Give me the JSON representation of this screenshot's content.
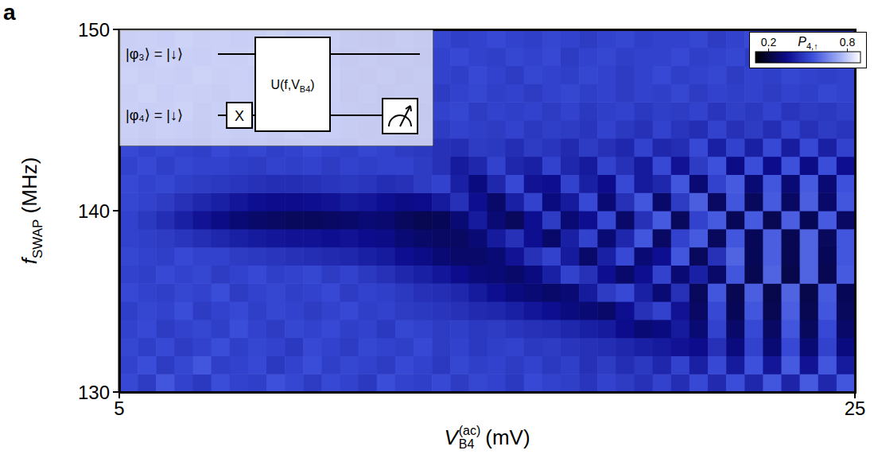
{
  "chart_data": {
    "type": "heatmap",
    "panel_label": "a",
    "x_label": {
      "symbol": "V",
      "sub": "B4",
      "sup": "(ac)",
      "unit": "(mV)"
    },
    "y_label": {
      "symbol": "f",
      "sub": "SWAP",
      "unit": "(MHz)"
    },
    "xlim": [
      5,
      25
    ],
    "xticks": [
      5,
      25
    ],
    "ylim": [
      130,
      150
    ],
    "yticks": [
      130,
      140,
      150
    ],
    "x": [
      5.25,
      5.75,
      6.25,
      6.75,
      7.25,
      7.75,
      8.25,
      8.75,
      9.25,
      9.75,
      10.25,
      10.75,
      11.25,
      11.75,
      12.25,
      12.75,
      13.25,
      13.75,
      14.25,
      14.75,
      15.25,
      15.75,
      16.25,
      16.75,
      17.25,
      17.75,
      18.25,
      18.75,
      19.25,
      19.75,
      20.25,
      20.75,
      21.25,
      21.75,
      22.25,
      22.75,
      23.25,
      23.75,
      24.25,
      24.75
    ],
    "y": [
      130.5,
      131.5,
      132.5,
      133.5,
      134.5,
      135.5,
      136.5,
      137.5,
      138.5,
      139.5,
      140.5,
      141.5,
      142.5,
      143.5,
      144.5,
      145.5,
      146.5,
      147.5,
      148.5,
      149.5
    ],
    "values": [
      [
        0.52,
        0.48,
        0.55,
        0.5,
        0.47,
        0.53,
        0.5,
        0.49,
        0.54,
        0.51,
        0.48,
        0.52,
        0.5,
        0.47,
        0.53,
        0.5,
        0.49,
        0.52,
        0.48,
        0.51,
        0.5,
        0.47,
        0.52,
        0.5,
        0.49,
        0.46,
        0.5,
        0.48,
        0.45,
        0.5,
        0.44,
        0.52,
        0.43,
        0.53,
        0.42,
        0.55,
        0.41,
        0.56,
        0.42,
        0.55
      ],
      [
        0.5,
        0.53,
        0.48,
        0.51,
        0.55,
        0.49,
        0.5,
        0.52,
        0.47,
        0.5,
        0.53,
        0.49,
        0.51,
        0.5,
        0.48,
        0.52,
        0.5,
        0.47,
        0.51,
        0.49,
        0.5,
        0.48,
        0.5,
        0.47,
        0.49,
        0.45,
        0.48,
        0.44,
        0.47,
        0.42,
        0.5,
        0.4,
        0.52,
        0.38,
        0.54,
        0.37,
        0.56,
        0.36,
        0.55,
        0.38
      ],
      [
        0.51,
        0.49,
        0.52,
        0.48,
        0.5,
        0.53,
        0.49,
        0.51,
        0.5,
        0.47,
        0.52,
        0.5,
        0.48,
        0.51,
        0.5,
        0.49,
        0.52,
        0.48,
        0.5,
        0.47,
        0.49,
        0.5,
        0.47,
        0.48,
        0.46,
        0.45,
        0.44,
        0.42,
        0.4,
        0.38,
        0.36,
        0.34,
        0.45,
        0.32,
        0.5,
        0.3,
        0.52,
        0.3,
        0.5,
        0.32
      ],
      [
        0.5,
        0.52,
        0.48,
        0.5,
        0.51,
        0.49,
        0.53,
        0.5,
        0.48,
        0.51,
        0.5,
        0.52,
        0.49,
        0.5,
        0.47,
        0.51,
        0.5,
        0.48,
        0.49,
        0.47,
        0.48,
        0.46,
        0.45,
        0.44,
        0.42,
        0.4,
        0.38,
        0.34,
        0.3,
        0.32,
        0.38,
        0.3,
        0.5,
        0.28,
        0.52,
        0.27,
        0.55,
        0.26,
        0.52,
        0.28
      ],
      [
        0.49,
        0.51,
        0.5,
        0.53,
        0.48,
        0.5,
        0.52,
        0.49,
        0.51,
        0.5,
        0.48,
        0.5,
        0.52,
        0.49,
        0.5,
        0.48,
        0.47,
        0.46,
        0.45,
        0.43,
        0.42,
        0.4,
        0.37,
        0.35,
        0.32,
        0.3,
        0.28,
        0.35,
        0.45,
        0.5,
        0.36,
        0.27,
        0.52,
        0.25,
        0.55,
        0.24,
        0.57,
        0.24,
        0.55,
        0.26
      ],
      [
        0.52,
        0.5,
        0.49,
        0.51,
        0.5,
        0.53,
        0.48,
        0.5,
        0.51,
        0.49,
        0.5,
        0.52,
        0.48,
        0.5,
        0.49,
        0.47,
        0.45,
        0.44,
        0.42,
        0.38,
        0.35,
        0.32,
        0.3,
        0.28,
        0.3,
        0.38,
        0.48,
        0.52,
        0.4,
        0.3,
        0.45,
        0.26,
        0.55,
        0.24,
        0.57,
        0.23,
        0.58,
        0.23,
        0.56,
        0.25
      ],
      [
        0.5,
        0.49,
        0.52,
        0.5,
        0.51,
        0.48,
        0.5,
        0.52,
        0.49,
        0.5,
        0.51,
        0.48,
        0.5,
        0.47,
        0.45,
        0.42,
        0.4,
        0.37,
        0.34,
        0.31,
        0.3,
        0.28,
        0.32,
        0.4,
        0.5,
        0.45,
        0.35,
        0.28,
        0.35,
        0.5,
        0.3,
        0.4,
        0.28,
        0.55,
        0.24,
        0.58,
        0.23,
        0.58,
        0.24,
        0.56
      ],
      [
        0.51,
        0.5,
        0.49,
        0.52,
        0.5,
        0.5,
        0.48,
        0.47,
        0.46,
        0.45,
        0.44,
        0.43,
        0.42,
        0.4,
        0.38,
        0.35,
        0.33,
        0.3,
        0.28,
        0.28,
        0.3,
        0.36,
        0.45,
        0.5,
        0.38,
        0.28,
        0.4,
        0.52,
        0.3,
        0.35,
        0.55,
        0.26,
        0.45,
        0.58,
        0.25,
        0.57,
        0.24,
        0.58,
        0.25,
        0.55
      ],
      [
        0.5,
        0.49,
        0.48,
        0.46,
        0.44,
        0.42,
        0.4,
        0.38,
        0.37,
        0.36,
        0.36,
        0.35,
        0.36,
        0.34,
        0.33,
        0.3,
        0.28,
        0.27,
        0.27,
        0.3,
        0.38,
        0.45,
        0.35,
        0.28,
        0.4,
        0.5,
        0.3,
        0.42,
        0.55,
        0.27,
        0.5,
        0.56,
        0.26,
        0.55,
        0.25,
        0.57,
        0.24,
        0.58,
        0.26,
        0.55
      ],
      [
        0.5,
        0.47,
        0.44,
        0.4,
        0.36,
        0.33,
        0.3,
        0.28,
        0.27,
        0.26,
        0.26,
        0.27,
        0.28,
        0.3,
        0.29,
        0.26,
        0.24,
        0.25,
        0.3,
        0.38,
        0.3,
        0.26,
        0.35,
        0.48,
        0.3,
        0.35,
        0.52,
        0.28,
        0.45,
        0.56,
        0.26,
        0.5,
        0.56,
        0.25,
        0.56,
        0.24,
        0.57,
        0.25,
        0.56,
        0.27
      ],
      [
        0.51,
        0.5,
        0.48,
        0.45,
        0.42,
        0.4,
        0.37,
        0.35,
        0.34,
        0.34,
        0.35,
        0.36,
        0.38,
        0.37,
        0.35,
        0.33,
        0.34,
        0.38,
        0.45,
        0.35,
        0.28,
        0.4,
        0.5,
        0.32,
        0.38,
        0.52,
        0.3,
        0.45,
        0.55,
        0.28,
        0.48,
        0.57,
        0.27,
        0.55,
        0.26,
        0.56,
        0.27,
        0.57,
        0.28,
        0.55
      ],
      [
        0.52,
        0.5,
        0.51,
        0.49,
        0.48,
        0.47,
        0.46,
        0.45,
        0.44,
        0.44,
        0.45,
        0.46,
        0.47,
        0.46,
        0.44,
        0.45,
        0.48,
        0.5,
        0.4,
        0.32,
        0.42,
        0.52,
        0.36,
        0.35,
        0.5,
        0.4,
        0.34,
        0.52,
        0.38,
        0.42,
        0.55,
        0.3,
        0.5,
        0.56,
        0.3,
        0.55,
        0.3,
        0.56,
        0.3,
        0.54
      ],
      [
        0.5,
        0.52,
        0.49,
        0.51,
        0.5,
        0.5,
        0.49,
        0.48,
        0.5,
        0.49,
        0.5,
        0.48,
        0.5,
        0.49,
        0.5,
        0.5,
        0.48,
        0.45,
        0.38,
        0.42,
        0.5,
        0.42,
        0.4,
        0.5,
        0.42,
        0.38,
        0.5,
        0.45,
        0.38,
        0.52,
        0.36,
        0.48,
        0.54,
        0.33,
        0.53,
        0.34,
        0.54,
        0.33,
        0.53,
        0.35
      ],
      [
        0.52,
        0.5,
        0.51,
        0.5,
        0.49,
        0.52,
        0.5,
        0.51,
        0.49,
        0.5,
        0.52,
        0.5,
        0.49,
        0.51,
        0.5,
        0.48,
        0.47,
        0.45,
        0.44,
        0.48,
        0.47,
        0.44,
        0.48,
        0.46,
        0.43,
        0.48,
        0.45,
        0.42,
        0.5,
        0.42,
        0.44,
        0.52,
        0.4,
        0.5,
        0.4,
        0.52,
        0.39,
        0.52,
        0.4,
        0.5
      ],
      [
        0.55,
        0.53,
        0.56,
        0.54,
        0.52,
        0.55,
        0.53,
        0.54,
        0.52,
        0.55,
        0.53,
        0.54,
        0.52,
        0.5,
        0.51,
        0.49,
        0.5,
        0.48,
        0.5,
        0.49,
        0.48,
        0.5,
        0.47,
        0.49,
        0.48,
        0.46,
        0.5,
        0.47,
        0.45,
        0.5,
        0.46,
        0.44,
        0.5,
        0.45,
        0.48,
        0.44,
        0.5,
        0.45,
        0.48,
        0.46
      ],
      [
        0.56,
        0.54,
        0.55,
        0.57,
        0.53,
        0.55,
        0.56,
        0.54,
        0.55,
        0.53,
        0.56,
        0.54,
        0.52,
        0.51,
        0.5,
        0.52,
        0.49,
        0.5,
        0.51,
        0.48,
        0.5,
        0.49,
        0.5,
        0.48,
        0.5,
        0.47,
        0.49,
        0.5,
        0.47,
        0.49,
        0.48,
        0.5,
        0.46,
        0.49,
        0.47,
        0.5,
        0.46,
        0.48,
        0.47,
        0.49
      ],
      [
        0.55,
        0.57,
        0.54,
        0.56,
        0.55,
        0.53,
        0.56,
        0.55,
        0.54,
        0.56,
        0.53,
        0.55,
        0.5,
        0.52,
        0.49,
        0.51,
        0.5,
        0.48,
        0.5,
        0.51,
        0.49,
        0.5,
        0.48,
        0.5,
        0.51,
        0.49,
        0.5,
        0.48,
        0.5,
        0.49,
        0.51,
        0.48,
        0.5,
        0.49,
        0.5,
        0.48,
        0.5,
        0.49,
        0.51,
        0.5
      ],
      [
        0.57,
        0.55,
        0.56,
        0.54,
        0.57,
        0.55,
        0.56,
        0.54,
        0.55,
        0.57,
        0.54,
        0.56,
        0.51,
        0.5,
        0.52,
        0.49,
        0.51,
        0.5,
        0.49,
        0.52,
        0.5,
        0.48,
        0.51,
        0.5,
        0.49,
        0.51,
        0.5,
        0.48,
        0.5,
        0.52,
        0.49,
        0.5,
        0.51,
        0.48,
        0.5,
        0.49,
        0.51,
        0.5,
        0.49,
        0.5
      ],
      [
        0.56,
        0.54,
        0.57,
        0.55,
        0.54,
        0.56,
        0.55,
        0.57,
        0.54,
        0.55,
        0.56,
        0.54,
        0.5,
        0.52,
        0.5,
        0.51,
        0.49,
        0.5,
        0.52,
        0.5,
        0.49,
        0.51,
        0.5,
        0.52,
        0.48,
        0.5,
        0.51,
        0.49,
        0.5,
        0.5,
        0.52,
        0.49,
        0.5,
        0.51,
        0.48,
        0.5,
        0.51,
        0.49,
        0.5,
        0.52
      ],
      [
        0.55,
        0.56,
        0.54,
        0.57,
        0.55,
        0.56,
        0.54,
        0.55,
        0.57,
        0.54,
        0.56,
        0.55,
        0.51,
        0.5,
        0.49,
        0.52,
        0.5,
        0.51,
        0.49,
        0.5,
        0.52,
        0.5,
        0.49,
        0.51,
        0.5,
        0.48,
        0.5,
        0.51,
        0.49,
        0.5,
        0.5,
        0.51,
        0.48,
        0.5,
        0.52,
        0.49,
        0.5,
        0.51,
        0.49,
        0.5
      ]
    ],
    "colorbar": {
      "label": {
        "symbol": "P",
        "sub": "4,↑"
      },
      "range": [
        0.1,
        0.9
      ],
      "ticks": [
        0.2,
        0.8
      ]
    },
    "inset": {
      "qubit_3": "|φ₃⟩ = |↓⟩",
      "qubit_4": "|φ₄⟩ = |↓⟩",
      "gate": "X",
      "unitary": {
        "text": "U(f,V",
        "sub": "B4",
        "close": ")"
      }
    }
  }
}
